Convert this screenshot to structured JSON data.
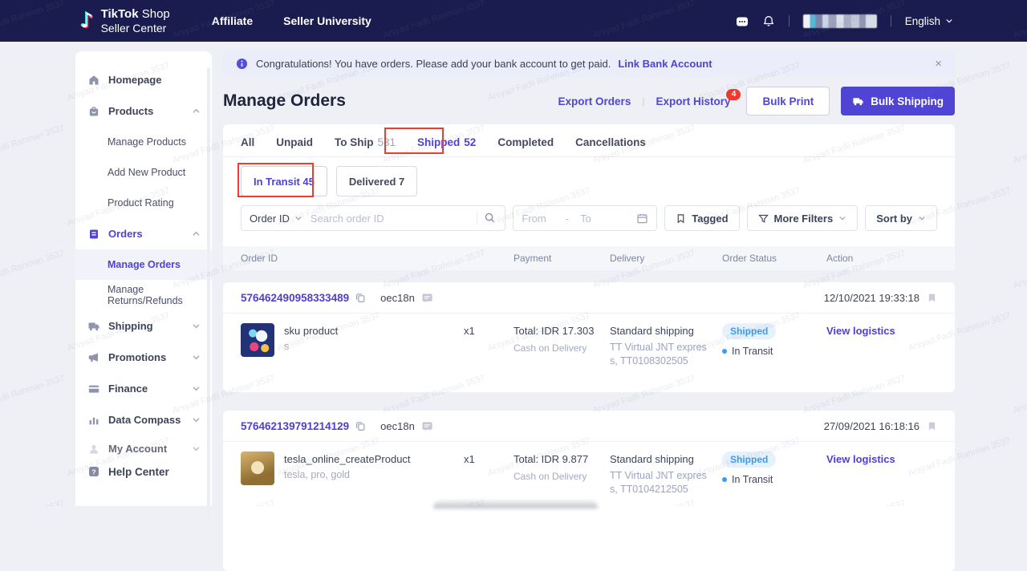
{
  "watermark": {
    "text": "Arsyad Fadli Rahman 3537"
  },
  "colors": {
    "accent": "#4f42d6",
    "navbar_bg": "#1a1c4f",
    "annotation_red": "#f23b2d",
    "badge_red": "#f0382c",
    "shipped_badge_bg": "#e5f1fd",
    "shipped_badge_text": "#3d9af0"
  },
  "navbar": {
    "logo_line1_bold": "TikTok",
    "logo_line1_rest": " Shop",
    "logo_line2": "Seller Center",
    "links": [
      {
        "label": "Affiliate"
      },
      {
        "label": "Seller University"
      }
    ],
    "language": "English"
  },
  "sidebar": {
    "homepage": "Homepage",
    "products": "Products",
    "products_children": [
      "Manage Products",
      "Add New Product",
      "Product Rating"
    ],
    "orders": "Orders",
    "orders_children": [
      "Manage Orders",
      "Manage Returns/Refunds"
    ],
    "shipping": "Shipping",
    "promotions": "Promotions",
    "finance": "Finance",
    "data_compass": "Data Compass",
    "my_account": "My Account",
    "help_center": "Help Center"
  },
  "banner": {
    "text": "Congratulations! You have orders. Please add your bank account to get paid.",
    "link_label": "Link Bank Account",
    "close": "×"
  },
  "header": {
    "title": "Manage Orders",
    "export_orders": "Export Orders",
    "export_history": "Export History",
    "export_history_badge": "4",
    "separator": "|",
    "bulk_print": "Bulk Print",
    "bulk_shipping": "Bulk Shipping"
  },
  "tabs": [
    {
      "label": "All"
    },
    {
      "label": "Unpaid"
    },
    {
      "label": "To Ship",
      "count": "581"
    },
    {
      "label": "Shipped",
      "count": "52"
    },
    {
      "label": "Completed"
    },
    {
      "label": "Cancellations"
    }
  ],
  "subtabs": [
    {
      "label": "In Transit 45"
    },
    {
      "label": "Delivered 7"
    }
  ],
  "filters": {
    "order_id": "Order ID",
    "search_placeholder": "Search order ID",
    "from": "From",
    "dash": "-",
    "to": "To",
    "tagged": "Tagged",
    "more_filters": "More Filters",
    "sort_by": "Sort by"
  },
  "table": {
    "columns": [
      "Order ID",
      "Payment",
      "Delivery",
      "Order Status",
      "Action"
    ]
  },
  "orders": [
    {
      "id": "576462490958333489",
      "buyer": "oec18n",
      "date": "12/10/2021 19:33:18",
      "product": {
        "name": "sku product",
        "variant": "s"
      },
      "qty": "x1",
      "payment": {
        "total": "Total: IDR 17.303",
        "method": "Cash on Delivery"
      },
      "delivery": {
        "method": "Standard shipping",
        "carrier_line1": "TT Virtual JNT expres",
        "carrier_line2": "s, TT0108302505"
      },
      "status": {
        "badge": "Shipped",
        "sub": "In Transit"
      },
      "action": "View logistics"
    },
    {
      "id": "576462139791214129",
      "buyer": "oec18n",
      "date": "27/09/2021 16:18:16",
      "product": {
        "name": "tesla_online_createProduct",
        "variant": "tesla, pro, gold"
      },
      "qty": "x1",
      "payment": {
        "total": "Total: IDR 9.877",
        "method": "Cash on Delivery"
      },
      "delivery": {
        "method": "Standard shipping",
        "carrier_line1": "TT Virtual JNT expres",
        "carrier_line2": "s, TT0104212505"
      },
      "status": {
        "badge": "Shipped",
        "sub": "In Transit"
      },
      "action": "View logistics"
    }
  ]
}
